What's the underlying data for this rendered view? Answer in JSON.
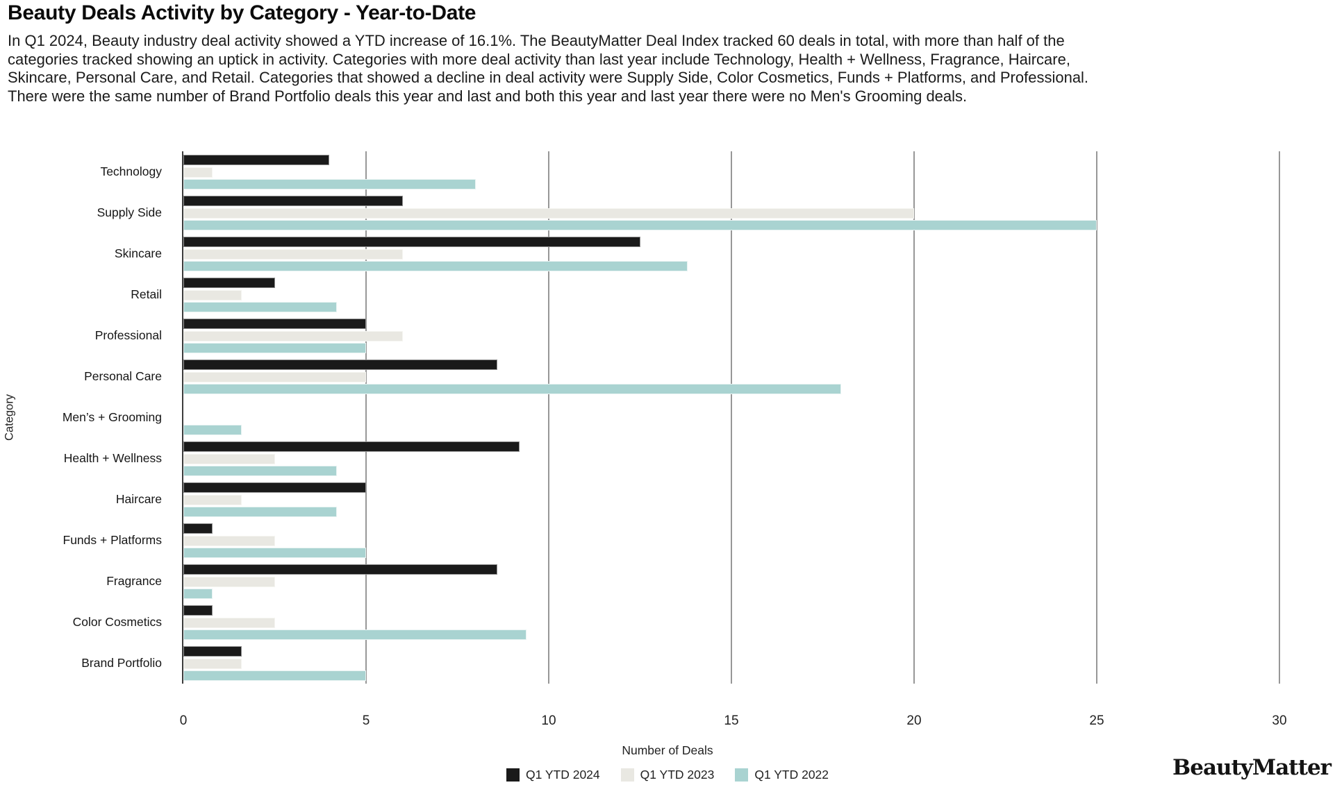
{
  "title": "Beauty Deals Activity by Category - Year-to-Date",
  "description_lines": [
    "In Q1 2024, Beauty industry deal activity showed a YTD increase of 16.1%. The BeautyMatter Deal Index tracked 60 deals in total, with more than half of the",
    "categories tracked showing an uptick in activity. Categories with more deal activity than last year include Technology, Health + Wellness, Fragrance, Haircare,",
    "Skincare, Personal Care, and Retail. Categories that showed a decline in deal activity were Supply Side, Color Cosmetics, Funds + Platforms, and Professional.",
    "There were the same number of Brand Portfolio deals this year and last and both this year and last year there were no Men's Grooming deals."
  ],
  "chart_data": {
    "type": "bar",
    "orientation": "horizontal",
    "title": "Beauty Deals Activity by Category - Year-to-Date",
    "xlabel": "Number of Deals",
    "ylabel": "Category",
    "xlim": [
      0,
      30
    ],
    "xticks": [
      0,
      5,
      10,
      15,
      20,
      25,
      30
    ],
    "grid": true,
    "legend_position": "bottom-center",
    "categories": [
      "Technology",
      "Supply Side",
      "Skincare",
      "Retail",
      "Professional",
      "Personal Care",
      "Men’s + Grooming",
      "Health + Wellness",
      "Haircare",
      "Funds + Platforms",
      "Fragrance",
      "Color Cosmetics",
      "Brand Portfolio"
    ],
    "series": [
      {
        "name": "Q1 YTD 2024",
        "color": "#1a1a1a",
        "values": [
          4,
          6,
          12.5,
          2.5,
          5,
          8.6,
          0,
          9.2,
          5,
          0.8,
          8.6,
          0.8,
          1.6
        ]
      },
      {
        "name": "Q1 YTD 2023",
        "color": "#e9e8e2",
        "values": [
          0.8,
          20,
          6,
          1.6,
          6,
          5,
          0,
          2.5,
          1.6,
          2.5,
          2.5,
          2.5,
          1.6
        ]
      },
      {
        "name": "Q1 YTD 2022",
        "color": "#a9d3d1",
        "values": [
          8,
          25,
          13.8,
          4.2,
          5,
          18,
          1.6,
          4.2,
          4.2,
          5,
          0.8,
          9.4,
          5
        ]
      }
    ]
  },
  "footer": {
    "brand": "BeautyMatter"
  }
}
